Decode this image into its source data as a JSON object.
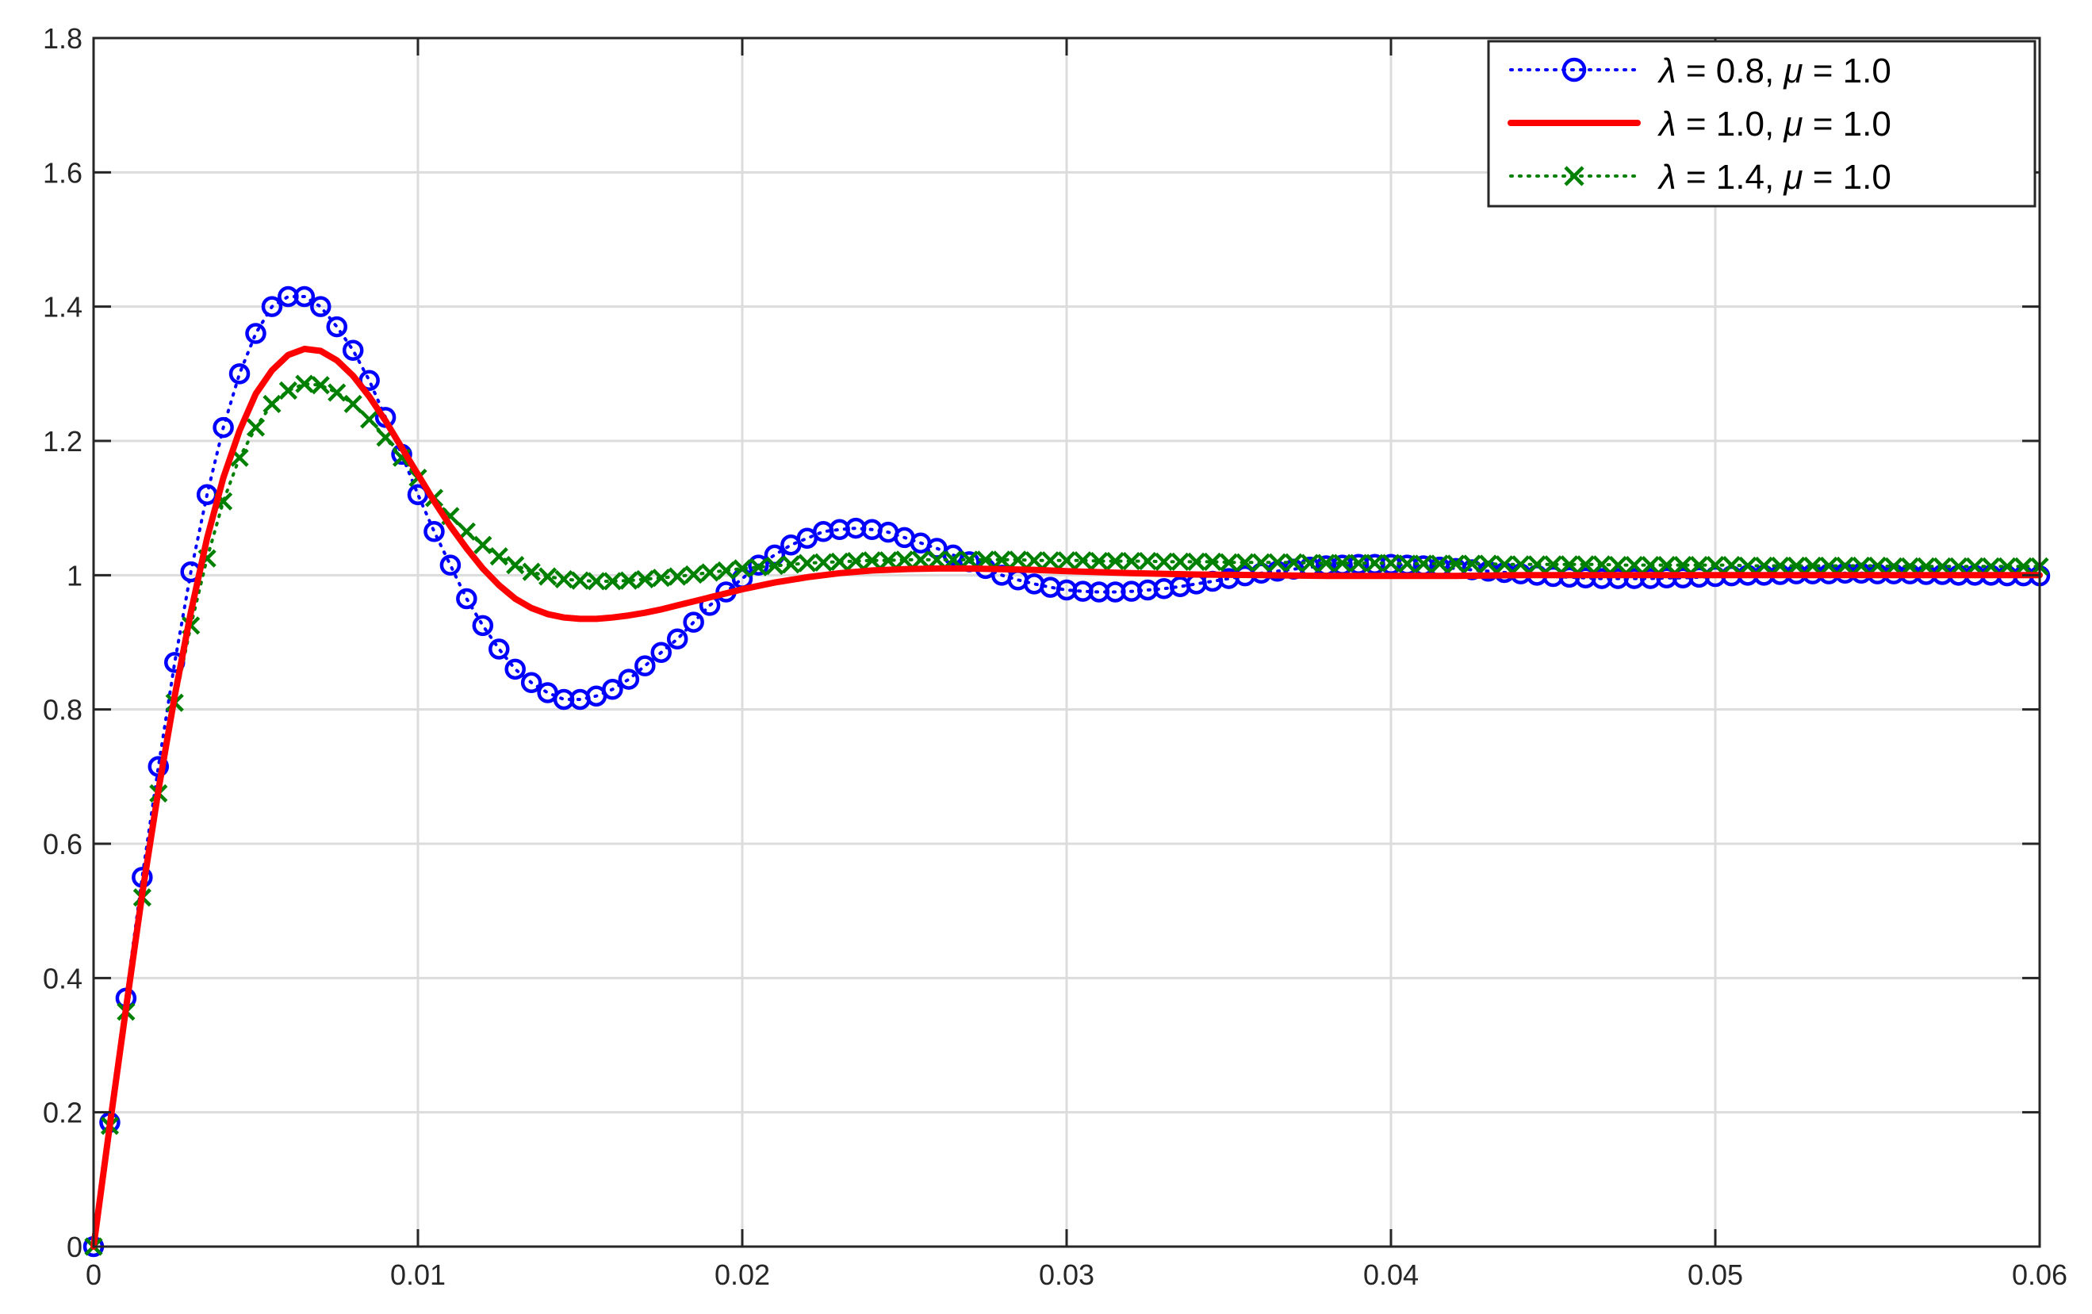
{
  "chart_data": {
    "type": "line",
    "title": "",
    "xlabel": "",
    "ylabel": "",
    "xlim": [
      0,
      0.06
    ],
    "ylim": [
      0,
      1.8
    ],
    "grid": true,
    "legend_position": "top-right",
    "x_ticks": [
      "0",
      "0.01",
      "0.02",
      "0.03",
      "0.04",
      "0.05",
      "0.06"
    ],
    "y_ticks": [
      "0",
      "0.2",
      "0.4",
      "0.6",
      "0.8",
      "1",
      "1.2",
      "1.4",
      "1.6",
      "1.8"
    ],
    "x_tick_values": [
      0,
      0.01,
      0.02,
      0.03,
      0.04,
      0.05,
      0.06
    ],
    "y_tick_values": [
      0,
      0.2,
      0.4,
      0.6,
      0.8,
      1.0,
      1.2,
      1.4,
      1.6,
      1.8
    ],
    "series": [
      {
        "name": "λ = 0.8, μ = 1.0",
        "lambda_label": "λ",
        "lambda_value": "0.8",
        "mu_label": "μ",
        "mu_value": "1.0",
        "color": "#0000ff",
        "line_style": "dotted",
        "marker": "circle",
        "x": [
          0,
          0.0005,
          0.001,
          0.0015,
          0.002,
          0.0025,
          0.003,
          0.0035,
          0.004,
          0.0045,
          0.005,
          0.0055,
          0.006,
          0.0065,
          0.007,
          0.0075,
          0.008,
          0.0085,
          0.009,
          0.0095,
          0.01,
          0.0105,
          0.011,
          0.0115,
          0.012,
          0.0125,
          0.013,
          0.0135,
          0.014,
          0.0145,
          0.015,
          0.0155,
          0.016,
          0.0165,
          0.017,
          0.0175,
          0.018,
          0.0185,
          0.019,
          0.0195,
          0.02,
          0.0205,
          0.021,
          0.0215,
          0.022,
          0.0225,
          0.023,
          0.0235,
          0.024,
          0.0245,
          0.025,
          0.0255,
          0.026,
          0.0265,
          0.027,
          0.0275,
          0.028,
          0.0285,
          0.029,
          0.0295,
          0.03,
          0.0305,
          0.031,
          0.0315,
          0.032,
          0.0325,
          0.033,
          0.0335,
          0.034,
          0.0345,
          0.035,
          0.0355,
          0.036,
          0.0365,
          0.037,
          0.0375,
          0.038,
          0.0385,
          0.039,
          0.0395,
          0.04,
          0.0405,
          0.041,
          0.0415,
          0.042,
          0.0425,
          0.043,
          0.0435,
          0.044,
          0.0445,
          0.045,
          0.0455,
          0.046,
          0.0465,
          0.047,
          0.0475,
          0.048,
          0.0485,
          0.049,
          0.0495,
          0.05,
          0.0505,
          0.051,
          0.0515,
          0.052,
          0.0525,
          0.053,
          0.0535,
          0.054,
          0.0545,
          0.055,
          0.0555,
          0.056,
          0.0565,
          0.057,
          0.0575,
          0.058,
          0.0585,
          0.059,
          0.0595,
          0.06
        ],
        "y": [
          0,
          0.185,
          0.37,
          0.55,
          0.715,
          0.87,
          1.005,
          1.12,
          1.22,
          1.3,
          1.36,
          1.4,
          1.415,
          1.415,
          1.4,
          1.37,
          1.335,
          1.29,
          1.235,
          1.18,
          1.12,
          1.065,
          1.015,
          0.965,
          0.925,
          0.89,
          0.86,
          0.84,
          0.825,
          0.815,
          0.815,
          0.82,
          0.83,
          0.845,
          0.865,
          0.885,
          0.905,
          0.93,
          0.955,
          0.975,
          0.995,
          1.015,
          1.03,
          1.045,
          1.055,
          1.065,
          1.068,
          1.07,
          1.068,
          1.064,
          1.056,
          1.048,
          1.04,
          1.03,
          1.02,
          1.01,
          1.0,
          0.993,
          0.987,
          0.982,
          0.978,
          0.976,
          0.975,
          0.975,
          0.976,
          0.978,
          0.98,
          0.983,
          0.987,
          0.991,
          0.995,
          0.999,
          1.003,
          1.006,
          1.009,
          1.012,
          1.014,
          1.015,
          1.016,
          1.016,
          1.016,
          1.015,
          1.014,
          1.012,
          1.01,
          1.008,
          1.006,
          1.004,
          1.002,
          1.0,
          0.998,
          0.997,
          0.996,
          0.995,
          0.995,
          0.995,
          0.995,
          0.996,
          0.996,
          0.997,
          0.998,
          0.999,
          1.0,
          1.0,
          1.001,
          1.002,
          1.002,
          1.002,
          1.003,
          1.003,
          1.002,
          1.002,
          1.002,
          1.001,
          1.001,
          1.0,
          1.0,
          1.0,
          0.999,
          0.999,
          0.999
        ]
      },
      {
        "name": "λ = 1.0, μ = 1.0",
        "lambda_label": "λ",
        "lambda_value": "1.0",
        "mu_label": "μ",
        "mu_value": "1.0",
        "color": "#ff0000",
        "line_style": "solid",
        "marker": "none",
        "x": [
          0,
          0.0005,
          0.001,
          0.0015,
          0.002,
          0.0025,
          0.003,
          0.0035,
          0.004,
          0.0045,
          0.005,
          0.0055,
          0.006,
          0.0065,
          0.007,
          0.0075,
          0.008,
          0.0085,
          0.009,
          0.0095,
          0.01,
          0.0105,
          0.011,
          0.0115,
          0.012,
          0.0125,
          0.013,
          0.0135,
          0.014,
          0.0145,
          0.015,
          0.0155,
          0.016,
          0.0165,
          0.017,
          0.0175,
          0.018,
          0.0185,
          0.019,
          0.0195,
          0.02,
          0.021,
          0.022,
          0.023,
          0.024,
          0.025,
          0.026,
          0.027,
          0.028,
          0.029,
          0.03,
          0.032,
          0.034,
          0.036,
          0.038,
          0.04,
          0.042,
          0.044,
          0.046,
          0.048,
          0.05,
          0.052,
          0.054,
          0.056,
          0.058,
          0.06
        ],
        "y": [
          0,
          0.18,
          0.355,
          0.525,
          0.68,
          0.82,
          0.945,
          1.055,
          1.145,
          1.215,
          1.27,
          1.305,
          1.328,
          1.337,
          1.334,
          1.32,
          1.297,
          1.266,
          1.23,
          1.19,
          1.15,
          1.11,
          1.073,
          1.04,
          1.01,
          0.985,
          0.965,
          0.951,
          0.942,
          0.937,
          0.935,
          0.935,
          0.937,
          0.94,
          0.944,
          0.949,
          0.955,
          0.961,
          0.967,
          0.973,
          0.979,
          0.989,
          0.997,
          1.003,
          1.007,
          1.009,
          1.01,
          1.01,
          1.009,
          1.008,
          1.006,
          1.003,
          1.001,
          1.0,
          0.999,
          0.999,
          0.999,
          1.0,
          1.0,
          1.0,
          1.0,
          1.0,
          1.0,
          1.0,
          1.0,
          1.0
        ]
      },
      {
        "name": "λ = 1.4, μ = 1.0",
        "lambda_label": "λ",
        "lambda_value": "1.4",
        "mu_label": "μ",
        "mu_value": "1.0",
        "color": "#008000",
        "line_style": "dotted",
        "marker": "x",
        "x": [
          0,
          0.0005,
          0.001,
          0.0015,
          0.002,
          0.0025,
          0.003,
          0.0035,
          0.004,
          0.0045,
          0.005,
          0.0055,
          0.006,
          0.0065,
          0.007,
          0.0075,
          0.008,
          0.0085,
          0.009,
          0.0095,
          0.01,
          0.0105,
          0.011,
          0.0115,
          0.012,
          0.0125,
          0.013,
          0.0135,
          0.014,
          0.0145,
          0.015,
          0.0155,
          0.016,
          0.0165,
          0.017,
          0.0175,
          0.018,
          0.0185,
          0.019,
          0.0195,
          0.02,
          0.0205,
          0.021,
          0.0215,
          0.022,
          0.0225,
          0.023,
          0.0235,
          0.024,
          0.0245,
          0.025,
          0.0255,
          0.026,
          0.0265,
          0.027,
          0.0275,
          0.028,
          0.0285,
          0.029,
          0.0295,
          0.03,
          0.0305,
          0.031,
          0.0315,
          0.032,
          0.0325,
          0.033,
          0.0335,
          0.034,
          0.0345,
          0.035,
          0.0355,
          0.036,
          0.0365,
          0.037,
          0.0375,
          0.038,
          0.0385,
          0.039,
          0.0395,
          0.04,
          0.0405,
          0.041,
          0.0415,
          0.042,
          0.0425,
          0.043,
          0.0435,
          0.044,
          0.0445,
          0.045,
          0.0455,
          0.046,
          0.0465,
          0.047,
          0.0475,
          0.048,
          0.0485,
          0.049,
          0.0495,
          0.05,
          0.0505,
          0.051,
          0.0515,
          0.052,
          0.0525,
          0.053,
          0.0535,
          0.054,
          0.0545,
          0.055,
          0.0555,
          0.056,
          0.0565,
          0.057,
          0.0575,
          0.058,
          0.0585,
          0.059,
          0.0595,
          0.06
        ],
        "y": [
          0,
          0.18,
          0.35,
          0.52,
          0.675,
          0.81,
          0.925,
          1.025,
          1.11,
          1.175,
          1.22,
          1.255,
          1.275,
          1.285,
          1.283,
          1.272,
          1.255,
          1.232,
          1.205,
          1.175,
          1.145,
          1.115,
          1.088,
          1.065,
          1.045,
          1.028,
          1.015,
          1.005,
          0.998,
          0.994,
          0.992,
          0.991,
          0.991,
          0.992,
          0.994,
          0.996,
          0.998,
          1.001,
          1.004,
          1.007,
          1.01,
          1.012,
          1.014,
          1.016,
          1.018,
          1.019,
          1.02,
          1.021,
          1.022,
          1.022,
          1.023,
          1.023,
          1.023,
          1.023,
          1.023,
          1.023,
          1.023,
          1.023,
          1.022,
          1.022,
          1.022,
          1.022,
          1.021,
          1.021,
          1.021,
          1.021,
          1.02,
          1.02,
          1.02,
          1.02,
          1.019,
          1.019,
          1.019,
          1.019,
          1.019,
          1.018,
          1.018,
          1.018,
          1.018,
          1.018,
          1.018,
          1.017,
          1.017,
          1.017,
          1.017,
          1.017,
          1.017,
          1.016,
          1.016,
          1.016,
          1.016,
          1.016,
          1.016,
          1.016,
          1.015,
          1.015,
          1.015,
          1.015,
          1.015,
          1.015,
          1.015,
          1.015,
          1.014,
          1.014,
          1.014,
          1.014,
          1.014,
          1.014,
          1.014,
          1.014,
          1.014,
          1.013,
          1.013,
          1.013,
          1.013,
          1.013,
          1.013,
          1.013,
          1.013,
          1.013,
          1.013
        ]
      }
    ]
  }
}
